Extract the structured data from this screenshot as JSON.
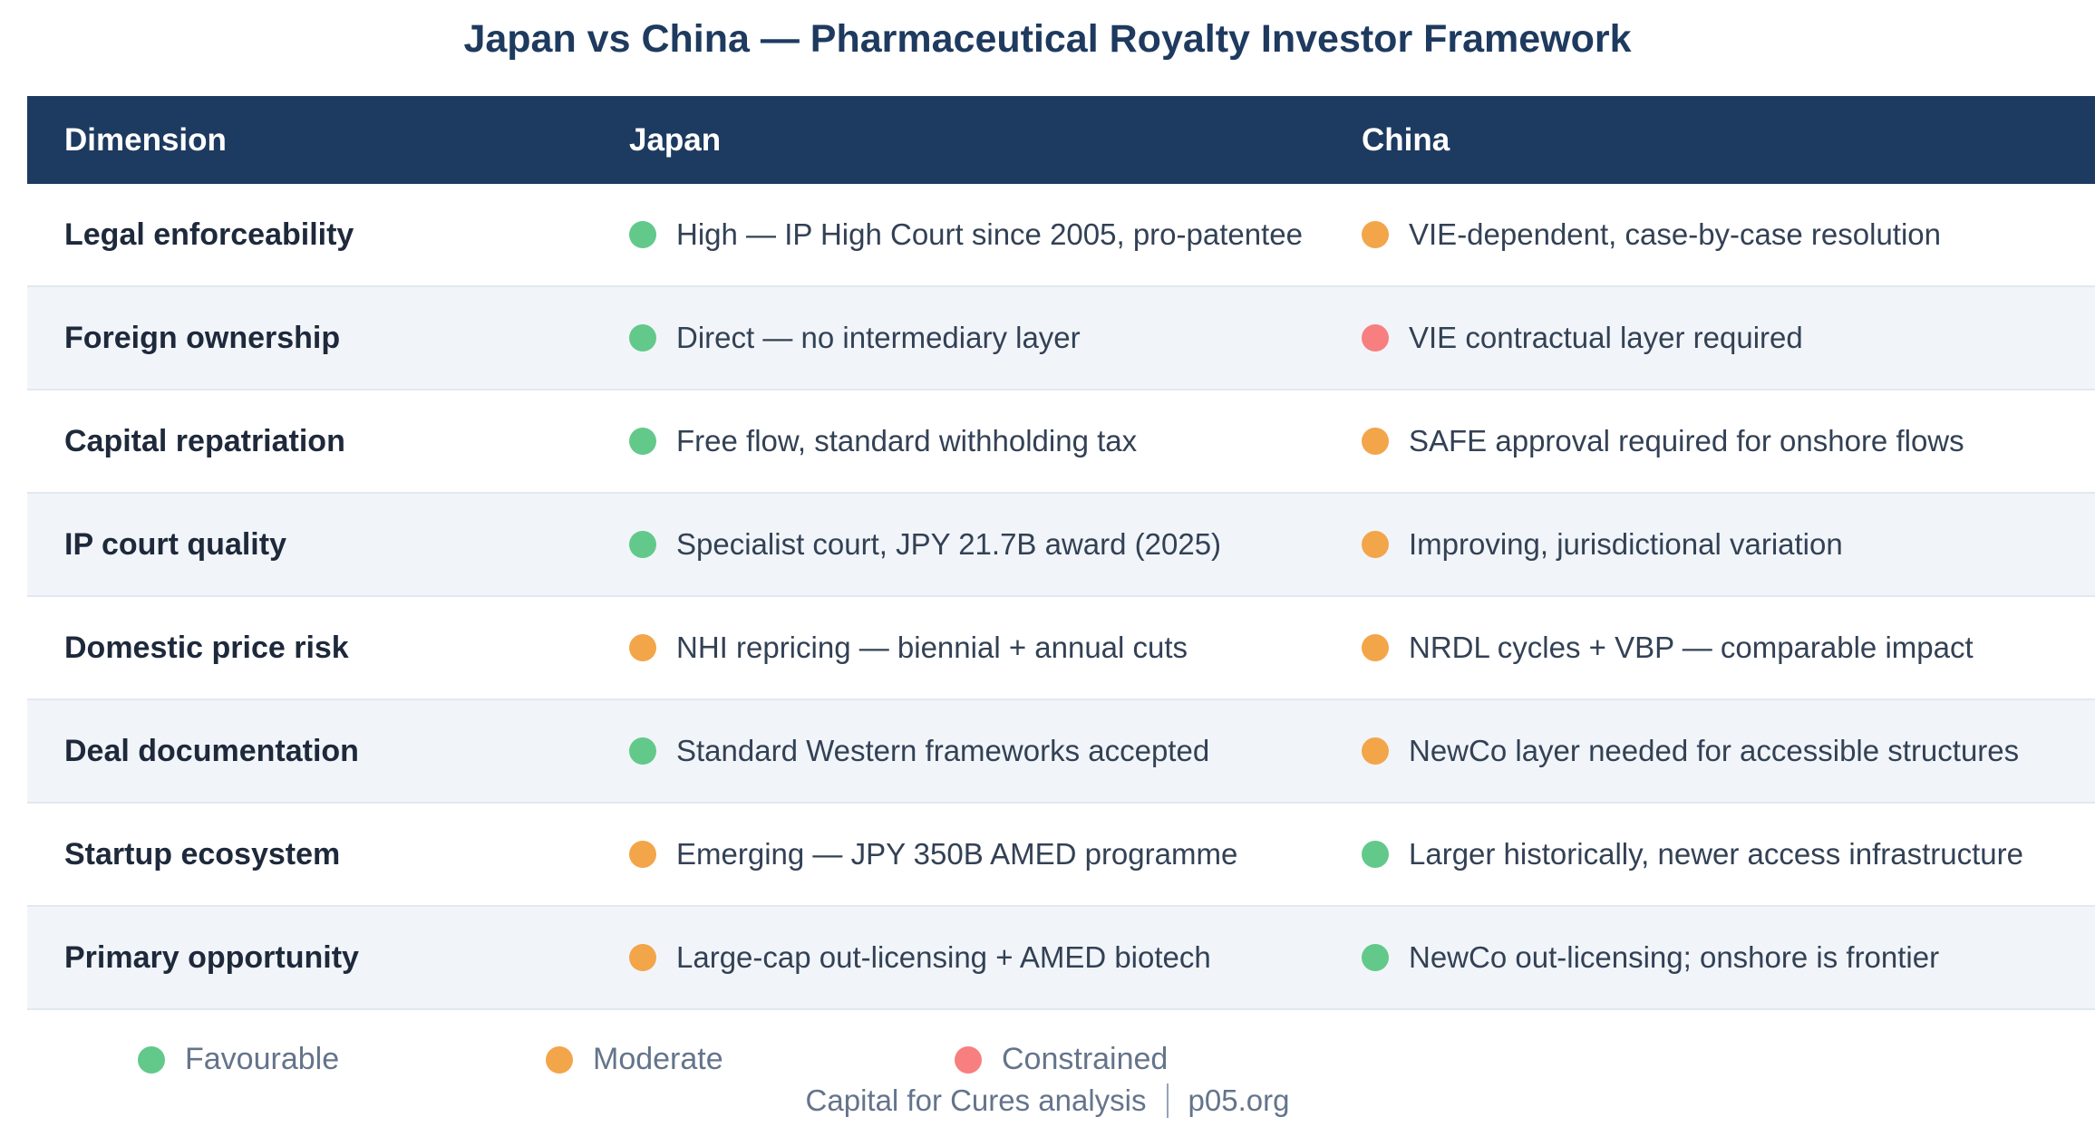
{
  "chart_data": {
    "type": "table",
    "title": "Japan vs China — Pharmaceutical Royalty Investor Framework",
    "columns": [
      "Dimension",
      "Japan",
      "China"
    ],
    "rows": [
      {
        "dimension": "Legal enforceability",
        "japan": {
          "status": "favourable",
          "text": "High — IP High Court since 2005, pro-patentee"
        },
        "china": {
          "status": "moderate",
          "text": "VIE-dependent, case-by-case resolution"
        }
      },
      {
        "dimension": "Foreign ownership",
        "japan": {
          "status": "favourable",
          "text": "Direct — no intermediary layer"
        },
        "china": {
          "status": "constrained",
          "text": "VIE contractual layer required"
        }
      },
      {
        "dimension": "Capital repatriation",
        "japan": {
          "status": "favourable",
          "text": "Free flow, standard withholding tax"
        },
        "china": {
          "status": "moderate",
          "text": "SAFE approval required for onshore flows"
        }
      },
      {
        "dimension": "IP court quality",
        "japan": {
          "status": "favourable",
          "text": "Specialist court, JPY 21.7B award (2025)"
        },
        "china": {
          "status": "moderate",
          "text": "Improving, jurisdictional variation"
        }
      },
      {
        "dimension": "Domestic price risk",
        "japan": {
          "status": "moderate",
          "text": "NHI repricing — biennial + annual cuts"
        },
        "china": {
          "status": "moderate",
          "text": "NRDL cycles + VBP — comparable impact"
        }
      },
      {
        "dimension": "Deal documentation",
        "japan": {
          "status": "favourable",
          "text": "Standard Western frameworks accepted"
        },
        "china": {
          "status": "moderate",
          "text": "NewCo layer needed for accessible structures"
        }
      },
      {
        "dimension": "Startup ecosystem",
        "japan": {
          "status": "moderate",
          "text": "Emerging — JPY 350B AMED programme"
        },
        "china": {
          "status": "favourable",
          "text": "Larger historically, newer access infrastructure"
        }
      },
      {
        "dimension": "Primary opportunity",
        "japan": {
          "status": "moderate",
          "text": "Large-cap out-licensing + AMED biotech"
        },
        "china": {
          "status": "favourable",
          "text": "NewCo out-licensing; onshore is frontier"
        }
      }
    ],
    "legend": [
      {
        "status": "favourable",
        "label": "Favourable"
      },
      {
        "status": "moderate",
        "label": "Moderate"
      },
      {
        "status": "constrained",
        "label": "Constrained"
      }
    ]
  },
  "footer": {
    "source": "Capital for Cures analysis",
    "site": "p05.org"
  },
  "colors": {
    "favourable": "#62c98b",
    "moderate": "#f3a54a",
    "constrained": "#f87f7f",
    "header_bg": "#1d3a60",
    "title_text": "#1e3a5f",
    "row_alt_bg": "#f1f5f9",
    "row_border": "#e2e8f0",
    "dimension_text": "#1e293b",
    "cell_text": "#334155",
    "muted_text": "#64748b"
  }
}
